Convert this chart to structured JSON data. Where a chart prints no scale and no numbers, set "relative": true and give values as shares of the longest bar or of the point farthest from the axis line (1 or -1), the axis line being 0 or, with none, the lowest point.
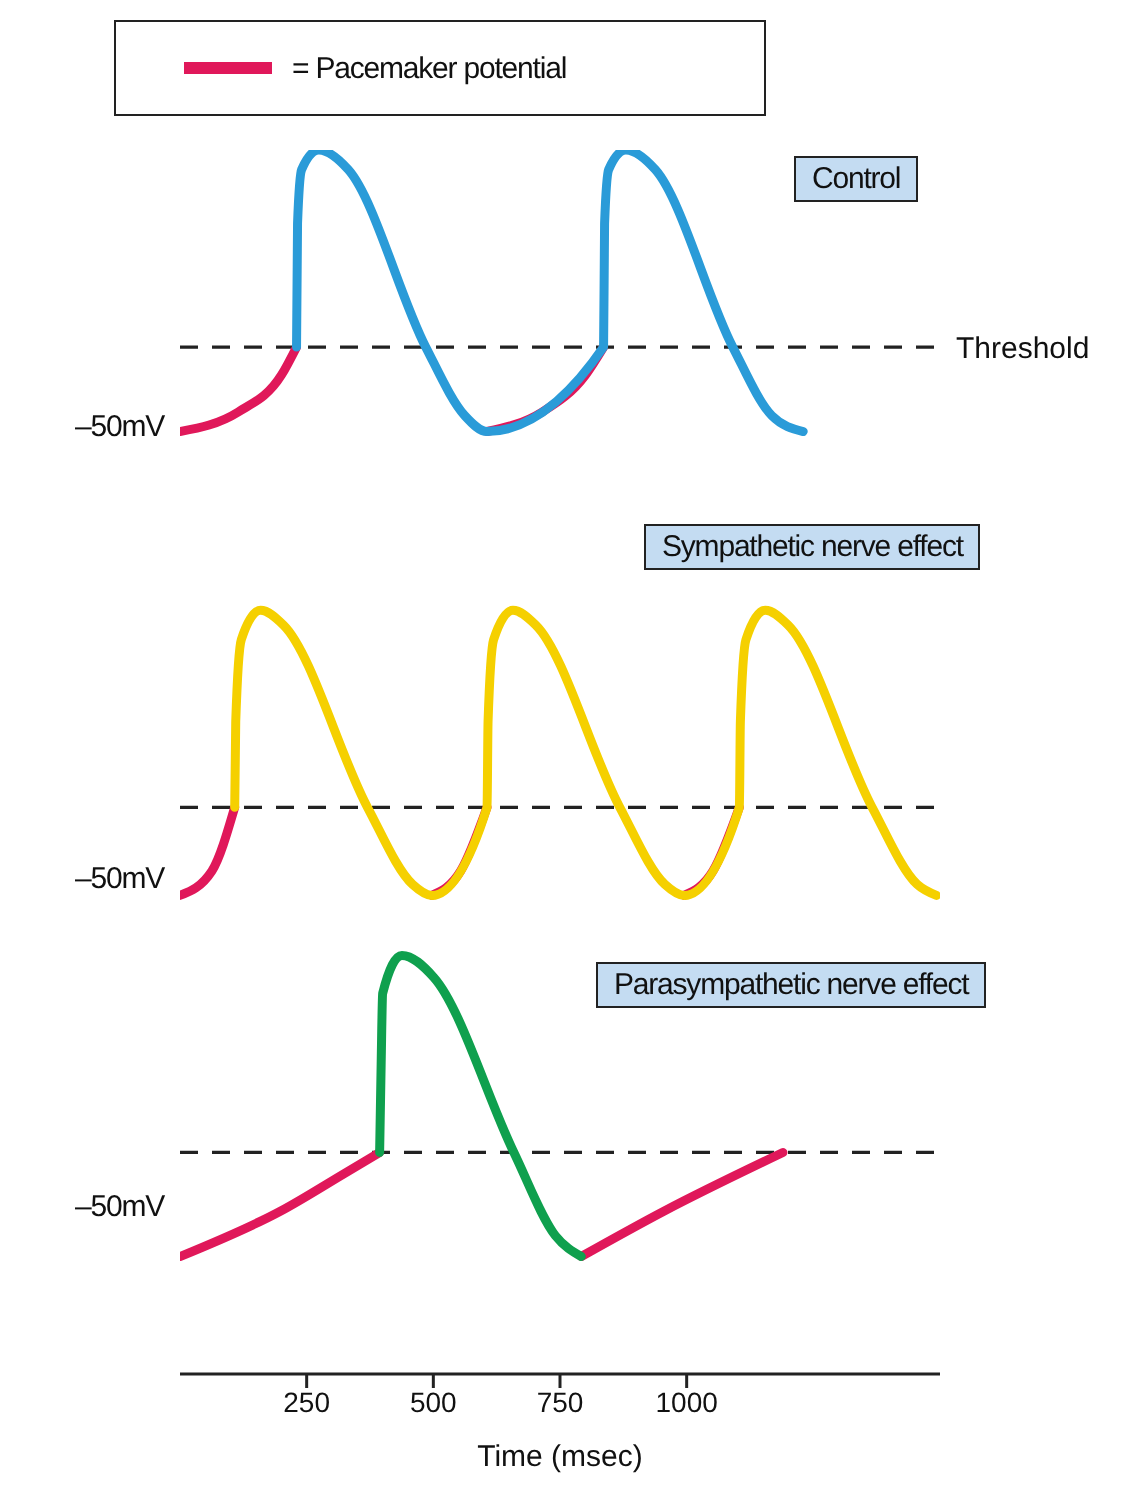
{
  "chart_data": {
    "type": "line",
    "relative": true,
    "xlim": [
      0,
      1500
    ],
    "xticks": [
      250,
      500,
      750,
      1000
    ],
    "xlabel": "Time (msec)",
    "legend": "top left",
    "series": [
      {
        "name": "= Pacemaker potential",
        "color": "#e0185a",
        "x": [
          0,
          115,
          200,
          230,
          418,
          606,
          715,
          800,
          836
        ],
        "values": [
          0.77,
          0.786,
          0.816,
          0.839,
          null,
          0.77,
          0.786,
          0.816,
          0.839
        ]
      },
      {
        "color": "#2a9bd8",
        "x": [
          230,
          232,
          240,
          274,
          332,
          485,
          562,
          606,
          836,
          838,
          846,
          880,
          938,
          1091,
          1168,
          1230
        ],
        "values": [
          0.839,
          0.94,
          0.984,
          1,
          0.984,
          0.839,
          0.783,
          0.77,
          0.839,
          0.94,
          0.984,
          1,
          0.984,
          0.839,
          0.783,
          0.77
        ]
      },
      {
        "color": "#e0185a",
        "x": [
          0,
          63,
          108,
          300,
          497,
          554,
          606,
          800,
          995,
          1052,
          1104
        ],
        "values": [
          0.391,
          0.411,
          0.463,
          null,
          0.391,
          0.411,
          0.463,
          null,
          0.391,
          0.411,
          0.463
        ]
      },
      {
        "color": "#f5d000",
        "x": [
          108,
          110,
          121,
          159,
          204,
          370,
          459,
          497,
          606,
          608,
          619,
          657,
          702,
          868,
          957,
          995,
          1104,
          1106,
          1117,
          1155,
          1200,
          1366,
          1455,
          1493
        ],
        "values": [
          0.463,
          0.533,
          0.6,
          0.624,
          0.612,
          0.463,
          0.4,
          0.391,
          0.463,
          0.533,
          0.6,
          0.624,
          0.612,
          0.463,
          0.4,
          0.391,
          0.463,
          0.533,
          0.6,
          0.624,
          0.612,
          0.463,
          0.4,
          0.391
        ]
      },
      {
        "color": "#e0185a",
        "x": [
          0,
          198,
          325,
          394,
          600,
          792,
          955,
          1190
        ],
        "values": [
          0.096,
          0.133,
          0.164,
          0.181,
          null,
          0.096,
          0.133,
          0.181
        ]
      },
      {
        "color": "#0fa04e",
        "x": [
          394,
          397,
          400,
          438,
          501,
          659,
          741,
          792
        ],
        "values": [
          0.181,
          0.253,
          0.311,
          0.342,
          0.324,
          0.181,
          0.113,
          0.096
        ]
      }
    ],
    "ref_lines": [
      {
        "axis": "y",
        "value": 0.839,
        "label": "Threshold",
        "color": "#222222",
        "line_style": "dashed"
      },
      {
        "axis": "y",
        "value": 0.463,
        "color": "#222222",
        "line_style": "dashed"
      },
      {
        "axis": "y",
        "value": 0.181,
        "color": "#222222",
        "line_style": "dashed"
      }
    ],
    "annotations": [
      "Control",
      "Sympathetic nerve effect",
      "Parasympathetic nerve effect",
      "–50mV",
      "–50mV",
      "–50mV"
    ]
  }
}
